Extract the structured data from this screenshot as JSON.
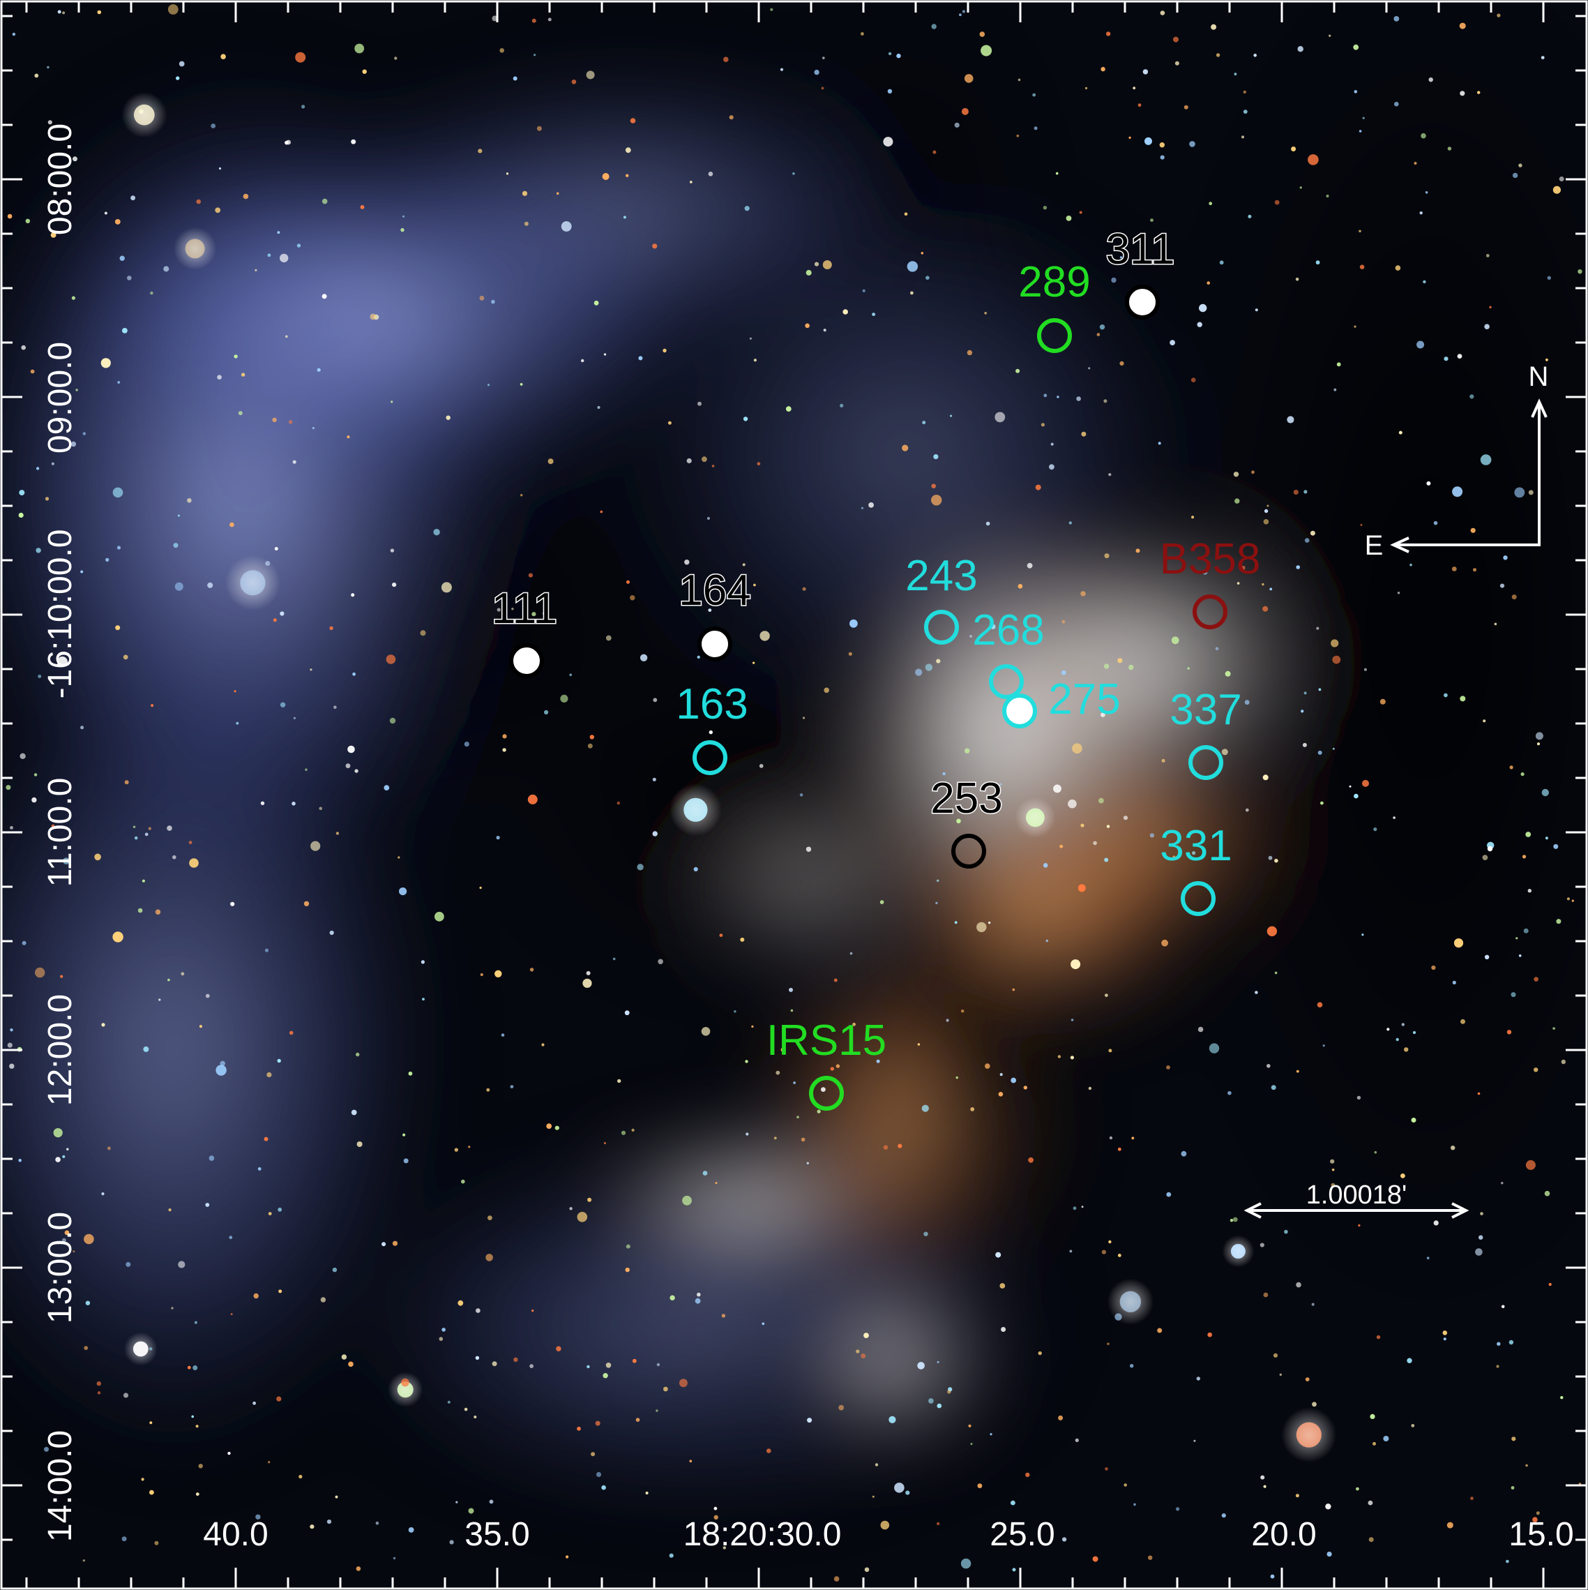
{
  "image": {
    "description_colors": {
      "background": "#05070e",
      "nebula_blue": "#6a78c8",
      "nebula_white": "#e8eaf5",
      "nebula_orange": "#d9884a",
      "dust_dark": "#1a0e08"
    }
  },
  "axes": {
    "ra_ticks": [
      "40.0",
      "35.0",
      "18:20:30.0",
      "25.0",
      "20.0",
      "15.0"
    ],
    "dec_ticks": [
      "08:00.0",
      "09:00.0",
      "-16:10:00.0",
      "11:00.0",
      "12:00.0",
      "13:00.0",
      "14:00.0"
    ]
  },
  "compass": {
    "north": "N",
    "east": "E"
  },
  "scale_bar": {
    "label": "1.00018'"
  },
  "markers": [
    {
      "id": "311",
      "label": "311",
      "color": "#000000",
      "fill": "#ffffff"
    },
    {
      "id": "289",
      "label": "289",
      "color": "#22dd22",
      "fill": "none"
    },
    {
      "id": "111",
      "label": "111",
      "color": "#000000",
      "fill": "#ffffff"
    },
    {
      "id": "164",
      "label": "164",
      "color": "#000000",
      "fill": "#ffffff"
    },
    {
      "id": "243",
      "label": "243",
      "color": "#22dddd",
      "fill": "none"
    },
    {
      "id": "268",
      "label": "268",
      "color": "#22dddd",
      "fill": "none"
    },
    {
      "id": "275",
      "label": "275",
      "color": "#22dddd",
      "fill": "#ffffff"
    },
    {
      "id": "B358",
      "label": "B358",
      "color": "#8b1010",
      "fill": "none"
    },
    {
      "id": "163",
      "label": "163",
      "color": "#22dddd",
      "fill": "none"
    },
    {
      "id": "337",
      "label": "337",
      "color": "#22dddd",
      "fill": "none"
    },
    {
      "id": "253",
      "label": "253",
      "color": "#000000",
      "fill": "none"
    },
    {
      "id": "331",
      "label": "331",
      "color": "#22dddd",
      "fill": "none"
    },
    {
      "id": "IRS15",
      "label": "IRS15",
      "color": "#22dd22",
      "fill": "none"
    }
  ]
}
